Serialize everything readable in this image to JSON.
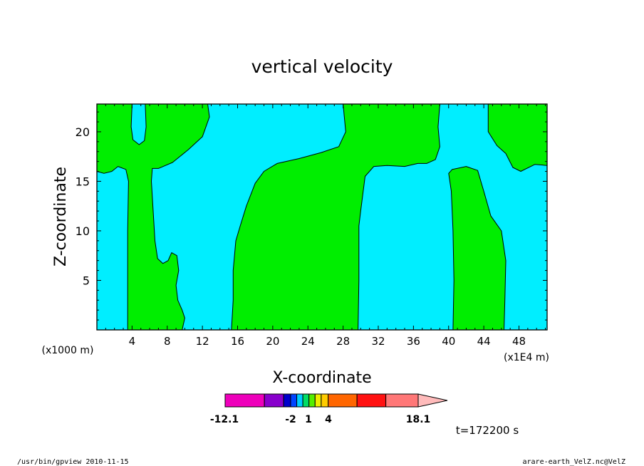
{
  "chart_data": {
    "type": "heatmap",
    "title": "vertical velocity",
    "xlabel": "X-coordinate",
    "ylabel": "Z-coordinate",
    "x_unit_left": "(x1000 m)",
    "x_unit_right": "(x1E4 m)",
    "xlim": [
      0,
      51.2
    ],
    "ylim": [
      0,
      22.8
    ],
    "x_ticks": [
      4,
      8,
      12,
      16,
      20,
      24,
      28,
      32,
      36,
      40,
      44,
      48
    ],
    "y_ticks": [
      5,
      10,
      15,
      20
    ],
    "fill_colors": {
      "negative": "#00eeff",
      "positive": "#00ee00"
    },
    "regions": [
      {
        "name": "positive",
        "outline": [
          [
            0,
            22.8
          ],
          [
            4.0,
            22.8
          ],
          [
            3.9,
            20.5
          ],
          [
            4.1,
            19.2
          ],
          [
            4.8,
            18.7
          ],
          [
            5.4,
            19.1
          ],
          [
            5.6,
            20.5
          ],
          [
            5.5,
            22.8
          ],
          [
            12.6,
            22.8
          ],
          [
            12.8,
            21.5
          ],
          [
            12.0,
            19.5
          ],
          [
            10.4,
            18.2
          ],
          [
            8.6,
            16.9
          ],
          [
            7.0,
            16.3
          ],
          [
            6.3,
            16.3
          ],
          [
            6.2,
            15.0
          ],
          [
            6.4,
            12.0
          ],
          [
            6.6,
            9.0
          ],
          [
            6.9,
            7.2
          ],
          [
            7.5,
            6.7
          ],
          [
            8.1,
            7.0
          ],
          [
            8.5,
            7.8
          ],
          [
            9.1,
            7.5
          ],
          [
            9.3,
            6.0
          ],
          [
            9.0,
            4.5
          ],
          [
            9.2,
            3.0
          ],
          [
            9.7,
            2.0
          ],
          [
            10.0,
            1.2
          ],
          [
            9.7,
            0
          ],
          [
            3.5,
            0
          ],
          [
            3.5,
            5.0
          ],
          [
            3.5,
            10.0
          ],
          [
            3.6,
            15.0
          ],
          [
            3.3,
            16.2
          ],
          [
            2.4,
            16.5
          ],
          [
            1.7,
            16.0
          ],
          [
            0.8,
            15.8
          ],
          [
            0,
            16.0
          ]
        ]
      },
      {
        "name": "positive",
        "outline": [
          [
            15.3,
            0
          ],
          [
            15.5,
            3.0
          ],
          [
            15.5,
            6.0
          ],
          [
            15.8,
            9.0
          ],
          [
            16.3,
            10.5
          ],
          [
            17.0,
            12.5
          ],
          [
            18.0,
            14.8
          ],
          [
            19.0,
            16.0
          ],
          [
            20.5,
            16.8
          ],
          [
            23.0,
            17.3
          ],
          [
            25.5,
            17.9
          ],
          [
            27.5,
            18.5
          ],
          [
            28.3,
            20.0
          ],
          [
            28.0,
            22.8
          ],
          [
            39.0,
            22.8
          ],
          [
            38.8,
            20.5
          ],
          [
            39.0,
            18.5
          ],
          [
            38.5,
            17.2
          ],
          [
            37.5,
            16.8
          ],
          [
            36.5,
            16.8
          ],
          [
            35.0,
            16.5
          ],
          [
            33.0,
            16.6
          ],
          [
            31.5,
            16.5
          ],
          [
            30.5,
            15.5
          ],
          [
            30.0,
            12.0
          ],
          [
            29.8,
            10.5
          ],
          [
            29.8,
            5.0
          ],
          [
            29.7,
            0
          ]
        ]
      },
      {
        "name": "positive",
        "outline": [
          [
            40.5,
            0
          ],
          [
            40.6,
            5.0
          ],
          [
            40.5,
            10.0
          ],
          [
            40.3,
            14.0
          ],
          [
            40.0,
            15.8
          ],
          [
            40.4,
            16.2
          ],
          [
            42.0,
            16.5
          ],
          [
            43.3,
            16.1
          ],
          [
            44.0,
            14.0
          ],
          [
            44.8,
            11.5
          ],
          [
            46.0,
            10.0
          ],
          [
            46.5,
            7.0
          ],
          [
            46.4,
            3.0
          ],
          [
            46.3,
            0
          ]
        ]
      },
      {
        "name": "positive",
        "outline": [
          [
            44.5,
            22.8
          ],
          [
            44.5,
            20.0
          ],
          [
            45.5,
            18.6
          ],
          [
            46.5,
            17.8
          ],
          [
            47.3,
            16.4
          ],
          [
            48.2,
            16.0
          ],
          [
            49.8,
            16.7
          ],
          [
            51.2,
            16.6
          ],
          [
            51.2,
            22.8
          ]
        ]
      }
    ],
    "colorbar": {
      "min_label": "-12.1",
      "max_label": "18.1",
      "mid_labels": [
        "-2",
        "1",
        "4"
      ],
      "segments": [
        {
          "color": "#ee00bb",
          "span": 4.5
        },
        {
          "color": "#8800cc",
          "span": 2.2
        },
        {
          "color": "#0000cc",
          "span": 0.8
        },
        {
          "color": "#0044ff",
          "span": 0.7
        },
        {
          "color": "#00ccff",
          "span": 0.7
        },
        {
          "color": "#00dd66",
          "span": 0.7
        },
        {
          "color": "#55ee00",
          "span": 0.7
        },
        {
          "color": "#eeee00",
          "span": 0.7
        },
        {
          "color": "#ffcc00",
          "span": 0.8
        },
        {
          "color": "#ff6600",
          "span": 3.3
        },
        {
          "color": "#ff1111",
          "span": 3.3
        },
        {
          "color": "#ff7777",
          "span": 3.7
        }
      ],
      "triangle_color": "#ffbbbb"
    }
  },
  "time_label": "t=172200 s",
  "footer_left": "/usr/bin/gpview  2010-11-15",
  "footer_right": "arare-earth_VelZ.nc@VelZ"
}
